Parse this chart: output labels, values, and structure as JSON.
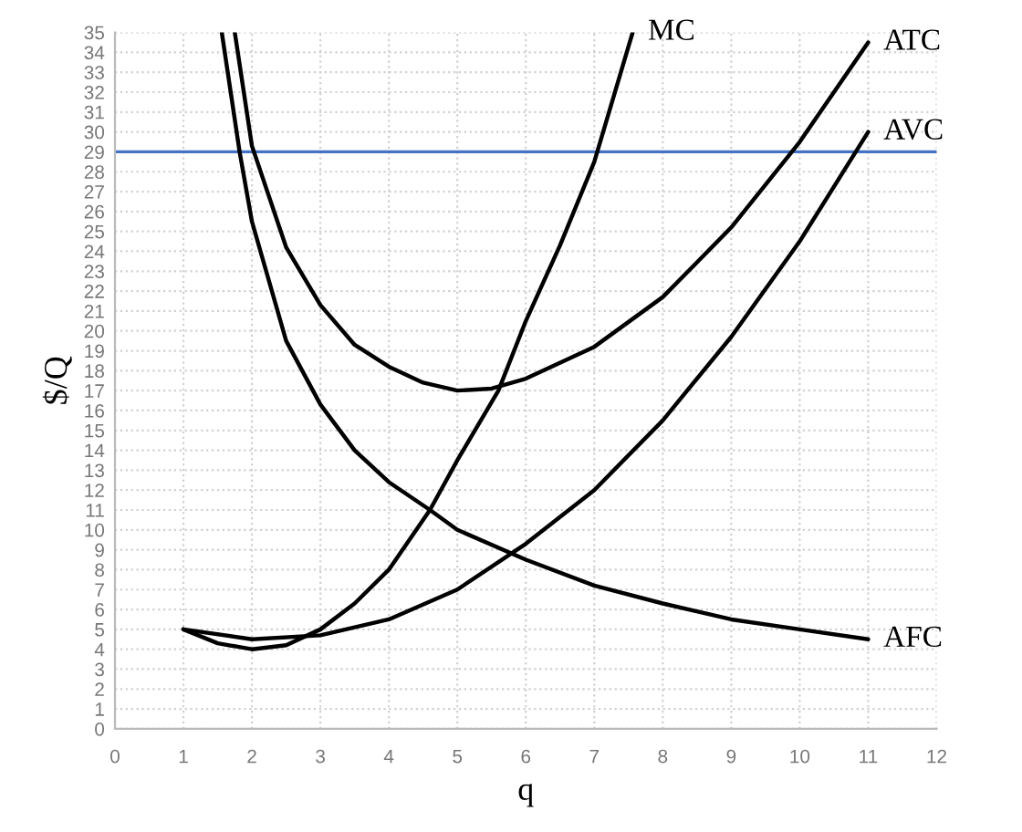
{
  "chart_data": {
    "type": "line",
    "xlabel": "q",
    "ylabel": "$/Q",
    "xlim": [
      0,
      12
    ],
    "xticks": [
      0,
      1,
      2,
      3,
      4,
      5,
      6,
      7,
      8,
      9,
      10,
      11,
      12
    ],
    "ylim": [
      0,
      35
    ],
    "yticks": [
      0,
      1,
      2,
      3,
      4,
      5,
      6,
      7,
      8,
      9,
      10,
      11,
      12,
      13,
      14,
      15,
      16,
      17,
      18,
      19,
      20,
      21,
      22,
      23,
      24,
      25,
      26,
      27,
      28,
      29,
      30,
      31,
      32,
      33,
      34,
      35
    ],
    "grid": true,
    "marker": "none",
    "line_style": "solid",
    "ref_lines": [
      {
        "axis": "y",
        "value": 29,
        "label": null,
        "color": "#4472c4"
      }
    ],
    "series": [
      {
        "name": "MC",
        "color": "#000000",
        "x": [
          1,
          1.5,
          2,
          2.5,
          3,
          3.5,
          4,
          4.6,
          5,
          5.6,
          6,
          6.5,
          7,
          7.56
        ],
        "values": [
          5,
          4.3,
          4,
          4.2,
          5,
          6.3,
          8,
          11,
          13.5,
          17,
          20.5,
          24.3,
          28.5,
          35
        ]
      },
      {
        "name": "ATC",
        "color": "#000000",
        "x": [
          1.75,
          2,
          2.5,
          3,
          3.5,
          4,
          4.5,
          5,
          5.5,
          6,
          7,
          8,
          9,
          10,
          11
        ],
        "values": [
          35,
          29.3,
          24.2,
          21.3,
          19.3,
          18.2,
          17.4,
          17,
          17.1,
          17.6,
          19.2,
          21.7,
          25.2,
          29.5,
          34.5
        ]
      },
      {
        "name": "AVC",
        "color": "#000000",
        "x": [
          1,
          2,
          3,
          4,
          5,
          6,
          7,
          8,
          9,
          10,
          11
        ],
        "values": [
          5,
          4.5,
          4.7,
          5.5,
          7,
          9.3,
          12,
          15.5,
          19.7,
          24.5,
          30
        ]
      },
      {
        "name": "AFC",
        "color": "#000000",
        "x": [
          1.56,
          1.82,
          2,
          2.5,
          3,
          3.5,
          4,
          4.6,
          5,
          6,
          7,
          8,
          9,
          10,
          11
        ],
        "values": [
          35,
          29,
          25.5,
          19.5,
          16.3,
          14,
          12.4,
          11,
          10,
          8.5,
          7.2,
          6.3,
          5.5,
          5,
          4.5
        ]
      }
    ]
  }
}
